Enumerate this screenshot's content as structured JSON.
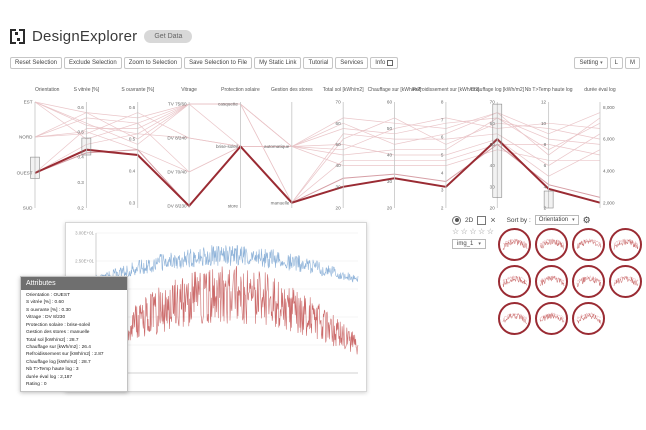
{
  "icons": {
    "caret": "▾",
    "close": "×",
    "gear": "⚙",
    "star": "☆"
  },
  "app": {
    "logo_text": "DesignExplorer",
    "get_data_label": "Get Data"
  },
  "toolbar": {
    "buttons": [
      {
        "label": "Reset Selection"
      },
      {
        "label": "Exclude Selection"
      },
      {
        "label": "Zoom to Selection"
      },
      {
        "label": "Save Selection to File"
      },
      {
        "label": "My Static Link"
      },
      {
        "label": "Tutorial"
      },
      {
        "label": "Services"
      },
      {
        "label": "Info",
        "icon": "external-link"
      }
    ],
    "right_buttons": [
      {
        "label": "Setting",
        "icon": "caret-down"
      },
      {
        "label": "L"
      },
      {
        "label": "M"
      }
    ]
  },
  "parallel_coordinates": {
    "colors": {
      "line": "#e9c3c6",
      "line2": "#d2949b",
      "highlight": "#9a2b33",
      "axis": "#c4c4c4",
      "brush_fill": "rgba(150,150,150,0.12)",
      "brush_stroke": "#8a8a8a"
    },
    "axes": [
      {
        "label": "Orientation",
        "ticks": [
          {
            "t": "EST",
            "p": 0.0
          },
          {
            "t": "NORD",
            "p": 0.33
          },
          {
            "t": "OUEST",
            "p": 0.67
          },
          {
            "t": "SUD",
            "p": 1.0
          }
        ]
      },
      {
        "label": "S vitrée [%]",
        "ticks": [
          {
            "t": "0.6",
            "p": 0.05
          },
          {
            "t": "0.5",
            "p": 0.28
          },
          {
            "t": "0.4",
            "p": 0.52
          },
          {
            "t": "0.3",
            "p": 0.76
          },
          {
            "t": "0.2",
            "p": 1.0
          }
        ]
      },
      {
        "label": "S ouvrante [%]",
        "ticks": [
          {
            "t": "0.6",
            "p": 0.05
          },
          {
            "t": "0.5",
            "p": 0.35
          },
          {
            "t": "0.4",
            "p": 0.65
          },
          {
            "t": "0.3",
            "p": 0.95
          }
        ]
      },
      {
        "label": "Vitrage",
        "ticks": [
          {
            "t": "TV 75/60",
            "p": 0.02
          },
          {
            "t": "DV 8/240",
            "p": 0.34
          },
          {
            "t": "DV 70/40",
            "p": 0.66
          },
          {
            "t": "DV 8/230",
            "p": 0.98
          }
        ]
      },
      {
        "label": "Protection solaire",
        "ticks": [
          {
            "t": "casquette",
            "p": 0.02
          },
          {
            "t": "brise-soleil",
            "p": 0.42
          },
          {
            "t": "store",
            "p": 0.98
          }
        ]
      },
      {
        "label": "Gestion des stores",
        "ticks": [
          {
            "t": "automatique",
            "p": 0.42
          },
          {
            "t": "manuelle",
            "p": 0.95
          }
        ]
      },
      {
        "label": "Total sol [kWh/m2]",
        "ticks": [
          {
            "t": "70",
            "p": 0.0
          },
          {
            "t": "60",
            "p": 0.2
          },
          {
            "t": "50",
            "p": 0.4
          },
          {
            "t": "40",
            "p": 0.6
          },
          {
            "t": "30",
            "p": 0.8
          },
          {
            "t": "20",
            "p": 1.0
          }
        ]
      },
      {
        "label": "Chauffage sur [kWh/m2]",
        "ticks": [
          {
            "t": "60",
            "p": 0.0
          },
          {
            "t": "50",
            "p": 0.25
          },
          {
            "t": "40",
            "p": 0.5
          },
          {
            "t": "30",
            "p": 0.75
          },
          {
            "t": "20",
            "p": 1.0
          }
        ]
      },
      {
        "label": "Refroidissement sur [kWh/m2]",
        "ticks": [
          {
            "t": "8",
            "p": 0.0
          },
          {
            "t": "7",
            "p": 0.17
          },
          {
            "t": "6",
            "p": 0.33
          },
          {
            "t": "5",
            "p": 0.5
          },
          {
            "t": "4",
            "p": 0.67
          },
          {
            "t": "3",
            "p": 0.83
          },
          {
            "t": "2",
            "p": 1.0
          }
        ]
      },
      {
        "label": "Chauffage log [kWh/m2]",
        "ticks": [
          {
            "t": "70",
            "p": 0.0
          },
          {
            "t": "60",
            "p": 0.2
          },
          {
            "t": "50",
            "p": 0.4
          },
          {
            "t": "40",
            "p": 0.6
          },
          {
            "t": "30",
            "p": 0.8
          },
          {
            "t": "20",
            "p": 1.0
          }
        ]
      },
      {
        "label": "Nb T>Temp haute log",
        "ticks": [
          {
            "t": "12",
            "p": 0.0
          },
          {
            "t": "10",
            "p": 0.2
          },
          {
            "t": "8",
            "p": 0.4
          },
          {
            "t": "6",
            "p": 0.6
          },
          {
            "t": "4",
            "p": 0.8
          },
          {
            "t": "2",
            "p": 1.0
          }
        ]
      },
      {
        "label": "durée éval log",
        "ticks": [
          {
            "t": "8,000",
            "p": 0.05
          },
          {
            "t": "6,000",
            "p": 0.35
          },
          {
            "t": "4,000",
            "p": 0.65
          },
          {
            "t": "2,000",
            "p": 0.95
          }
        ]
      }
    ],
    "lines": [
      [
        0.0,
        0.1,
        0.15,
        0.02,
        0.02,
        0.42,
        0.15,
        0.2,
        0.25,
        0.1,
        0.3,
        0.1
      ],
      [
        0.0,
        0.22,
        0.3,
        0.02,
        0.42,
        0.42,
        0.25,
        0.3,
        0.2,
        0.15,
        0.45,
        0.2
      ],
      [
        0.33,
        0.15,
        0.2,
        0.02,
        0.02,
        0.95,
        0.35,
        0.15,
        0.4,
        0.2,
        0.25,
        0.35
      ],
      [
        0.33,
        0.3,
        0.1,
        0.34,
        0.42,
        0.42,
        0.2,
        0.4,
        0.3,
        0.1,
        0.5,
        0.15
      ],
      [
        0.67,
        0.25,
        0.25,
        0.02,
        0.02,
        0.42,
        0.45,
        0.25,
        0.15,
        0.25,
        0.2,
        0.25
      ],
      [
        0.0,
        0.35,
        0.2,
        0.66,
        0.42,
        0.95,
        0.3,
        0.35,
        0.35,
        0.3,
        0.6,
        0.3
      ],
      [
        0.33,
        0.1,
        0.35,
        0.02,
        0.02,
        0.42,
        0.5,
        0.45,
        0.45,
        0.15,
        0.35,
        0.4
      ],
      [
        0.67,
        0.4,
        0.3,
        0.34,
        0.42,
        0.42,
        0.4,
        0.5,
        0.5,
        0.35,
        0.7,
        0.45
      ],
      [
        0.0,
        0.2,
        0.4,
        0.02,
        0.02,
        0.95,
        0.55,
        0.55,
        0.55,
        0.4,
        0.4,
        0.5
      ],
      [
        0.33,
        0.28,
        0.45,
        0.66,
        0.42,
        0.42,
        0.6,
        0.6,
        0.6,
        0.45,
        0.55,
        0.55
      ]
    ],
    "medium_line": [
      0.67,
      0.48,
      0.45,
      0.98,
      0.42,
      0.95,
      0.72,
      0.68,
      0.75,
      0.4,
      0.78,
      0.9
    ],
    "highlight_line": [
      0.67,
      0.45,
      0.5,
      0.98,
      0.42,
      0.95,
      0.8,
      0.72,
      0.8,
      0.35,
      0.82,
      0.95
    ],
    "brushes": [
      {
        "axis": 0,
        "from": 0.52,
        "to": 0.72
      },
      {
        "axis": 1,
        "from": 0.34,
        "to": 0.5
      },
      {
        "axis": 9,
        "from": 0.02,
        "to": 0.9
      },
      {
        "axis": 10,
        "from": 0.84,
        "to": 1.0
      }
    ]
  },
  "timeseries": {
    "y_ticks": [
      "3.00E+01",
      "2.50E+01",
      "2.00E+01",
      "1.50E+01",
      "1.00E+01",
      "5.00E+00"
    ],
    "points": 560,
    "series": [
      {
        "name": "serie-bleue",
        "color": "#8fb3d9",
        "base": 0.33,
        "season": 0.17,
        "noise": 0.11,
        "seed": 7
      },
      {
        "name": "serie-rouge",
        "color": "#cc6b6b",
        "base": 0.8,
        "season": 0.36,
        "noise": 0.3,
        "seed": 13
      }
    ]
  },
  "attributes": {
    "title": "Attributes",
    "separator": " : ",
    "rows": [
      {
        "label": "Orientation",
        "value": "OUEST"
      },
      {
        "label": "S vitrée [%]",
        "value": "0.60"
      },
      {
        "label": "S ouvrante [%]",
        "value": "0.30"
      },
      {
        "label": "Vitrage",
        "value": "DV 8/230"
      },
      {
        "label": "Protection solaire",
        "value": "brise-soleil"
      },
      {
        "label": "Gestion des stores",
        "value": "manuelle"
      },
      {
        "label": "Total sol [kWh/m2]",
        "value": "28.7"
      },
      {
        "label": "Chauffage sur [kWh/m2]",
        "value": "26.4"
      },
      {
        "label": "Refroidissement sur [kWh/m2]",
        "value": "2.87"
      },
      {
        "label": "Chauffage log [kWh/m2]",
        "value": "28.7"
      },
      {
        "label": "Nb T>Temp haute log",
        "value": "3"
      },
      {
        "label": "durée éval log",
        "value": "2,187"
      },
      {
        "label": "Rating",
        "value": "0"
      }
    ]
  },
  "controls": {
    "view_label": "2D",
    "sort_by_label": "Sort by :",
    "sort_value": "Orientation",
    "image_select_value": "img_1",
    "rating_stars": 5
  },
  "thumbnails": {
    "count": 11,
    "ring_color": "#9a2b33",
    "spark_color": "#c96a6a",
    "spark_color2": "#e8b4b8"
  }
}
